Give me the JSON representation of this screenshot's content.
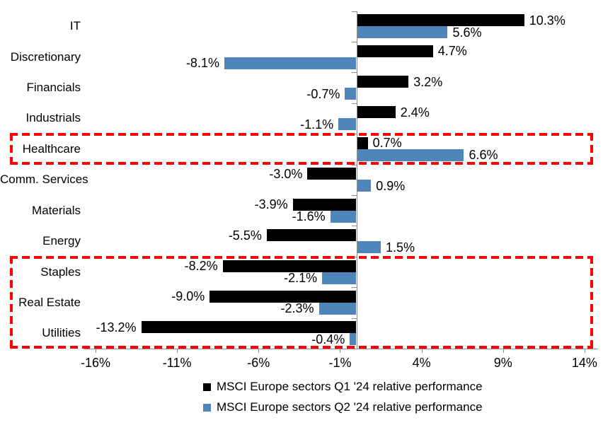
{
  "chart_data": {
    "type": "bar",
    "orientation": "horizontal",
    "title": "",
    "categories": [
      "IT",
      "Discretionary",
      "Financials",
      "Industrials",
      "Healthcare",
      "Comm. Services",
      "Materials",
      "Energy",
      "Staples",
      "Real Estate",
      "Utilities"
    ],
    "series": [
      {
        "name": "MSCI Europe sectors Q1 '24 relative performance",
        "color": "#000000",
        "values": [
          10.3,
          4.7,
          3.2,
          2.4,
          0.7,
          -3.0,
          -3.9,
          -5.5,
          -8.2,
          -9.0,
          -13.2
        ],
        "labels": [
          "10.3%",
          "4.7%",
          "3.2%",
          "2.4%",
          "0.7%",
          "-3.0%",
          "-3.9%",
          "-5.5%",
          "-8.2%",
          "-9.0%",
          "-13.2%"
        ]
      },
      {
        "name": "MSCI Europe sectors Q2 '24 relative performance",
        "color": "#4E86BC",
        "values": [
          5.6,
          -8.1,
          -0.7,
          -1.1,
          6.6,
          0.9,
          -1.6,
          1.5,
          -2.1,
          -2.3,
          -0.4
        ],
        "labels": [
          "5.6%",
          "-8.1%",
          "-0.7%",
          "-1.1%",
          "6.6%",
          "0.9%",
          "-1.6%",
          "1.5%",
          "-2.1%",
          "-2.3%",
          "-0.4%"
        ]
      }
    ],
    "x_axis": {
      "min": -16,
      "max": 14,
      "unit": "%",
      "ticks": [
        -16,
        -11,
        -6,
        -1,
        4,
        9,
        14
      ],
      "tick_labels": [
        "-16%",
        "-11%",
        "-6%",
        "-1%",
        "4%",
        "9%",
        "14%"
      ],
      "axis_color": "#8C8C8C"
    },
    "grid": false,
    "legend_position": "bottom",
    "highlights": [
      {
        "from_category": "Healthcare",
        "to_category": "Healthcare",
        "color": "#FF0000",
        "style": "dashed"
      },
      {
        "from_category": "Staples",
        "to_category": "Utilities",
        "color": "#FF0000",
        "style": "dashed"
      }
    ]
  }
}
